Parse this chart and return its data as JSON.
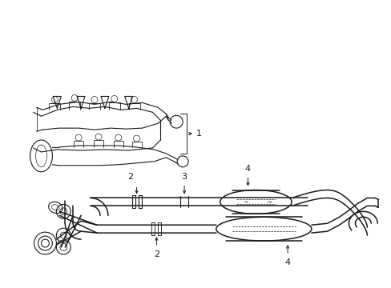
{
  "background_color": "#ffffff",
  "line_color": "#1a1a1a",
  "fig_width": 4.89,
  "fig_height": 3.6,
  "dpi": 100,
  "lw": 0.8,
  "lw_pipe": 1.1,
  "fontsize": 8
}
